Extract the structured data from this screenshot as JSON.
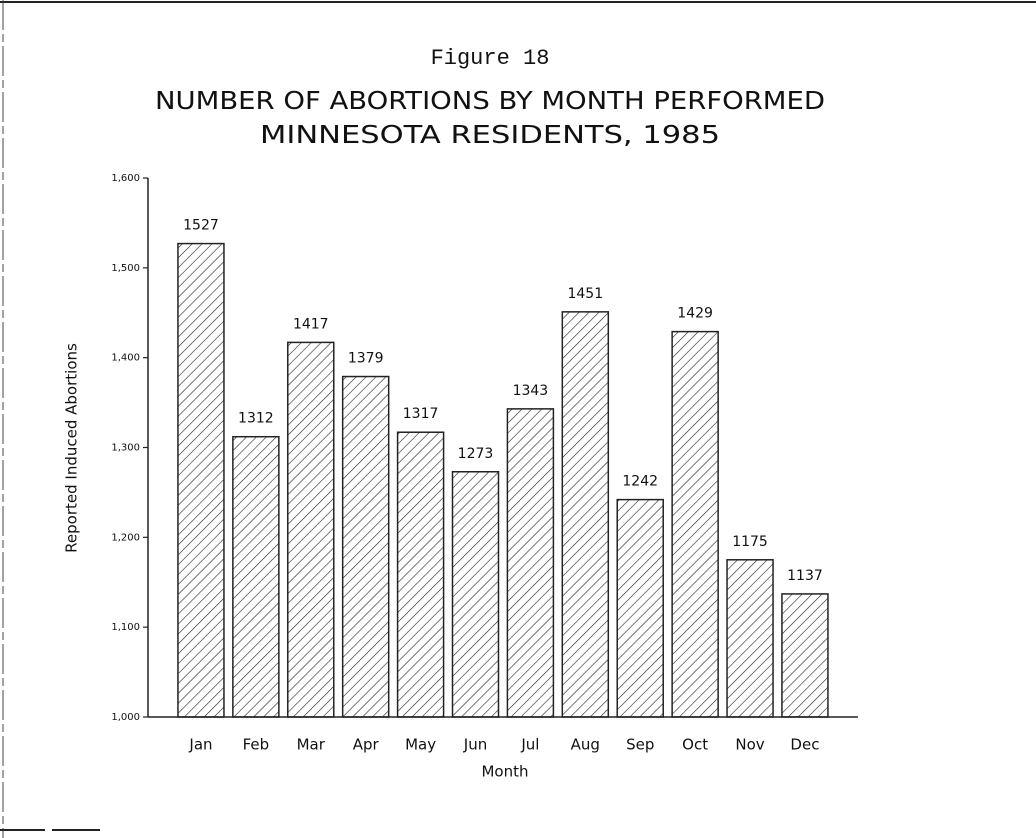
{
  "chart_data": {
    "type": "bar",
    "figure_label": "Figure 18",
    "title": "NUMBER OF ABORTIONS BY MONTH PERFORMED",
    "subtitle": "MINNESOTA RESIDENTS, 1985",
    "x_label": "Month",
    "y_label": "Reported Induced Abortions",
    "categories": [
      "Jan",
      "Feb",
      "Mar",
      "Apr",
      "May",
      "Jun",
      "Jul",
      "Aug",
      "Sep",
      "Oct",
      "Nov",
      "Dec"
    ],
    "values": [
      1527,
      1312,
      1417,
      1379,
      1317,
      1273,
      1343,
      1451,
      1242,
      1429,
      1175,
      1137
    ],
    "color": "#222222",
    "ylim": [
      1000,
      1600
    ],
    "yticks": [
      {
        "value": 1000,
        "label": "1,000"
      },
      {
        "value": 1100,
        "label": "1,100"
      },
      {
        "value": 1200,
        "label": "1,200"
      },
      {
        "value": 1300,
        "label": "1,300"
      },
      {
        "value": 1400,
        "label": "1,400"
      },
      {
        "value": 1500,
        "label": "1,500"
      },
      {
        "value": 1600,
        "label": "1,600"
      }
    ],
    "grid": false,
    "hatch": true
  }
}
